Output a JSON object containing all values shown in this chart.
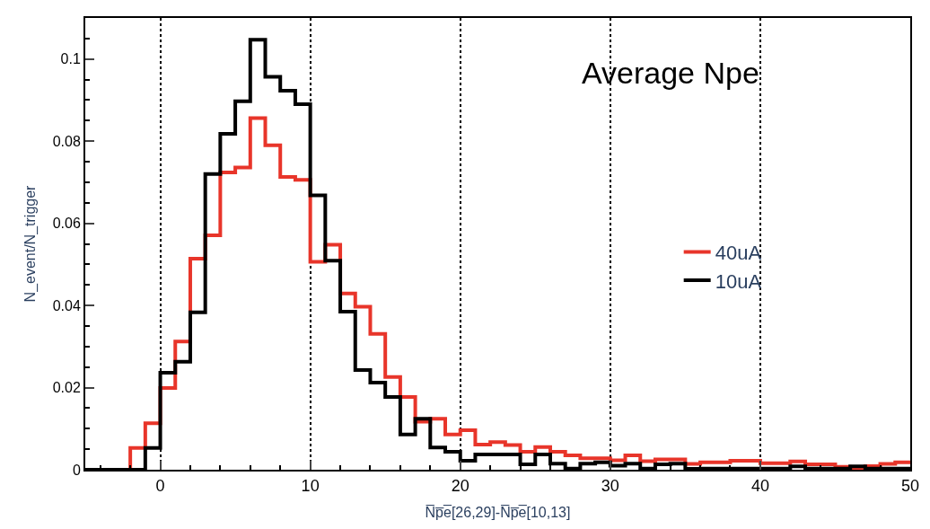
{
  "chart_data": {
    "type": "histogram",
    "xlabel": "N̅p̅e̅[26,29]-N̅p̅e̅[10,13]",
    "ylabel": "N_event/N_trigger",
    "annotations": [
      "Average Npe"
    ],
    "bins": [
      -5,
      -4,
      -3,
      -2,
      -1,
      0,
      1,
      2,
      3,
      4,
      5,
      6,
      7,
      8,
      9,
      10,
      11,
      12,
      13,
      14,
      15,
      16,
      17,
      18,
      19,
      20,
      21,
      22,
      23,
      24,
      25,
      26,
      27,
      28,
      29,
      30,
      31,
      32,
      33,
      34,
      35,
      36,
      37,
      38,
      39,
      40,
      41,
      42,
      43,
      44,
      45,
      46,
      47,
      48,
      49,
      50
    ],
    "series": [
      {
        "name": "40uA",
        "color": "#e8352a",
        "values": [
          0,
          0,
          0,
          0.0053,
          0.0113,
          0.0199,
          0.0312,
          0.0514,
          0.0571,
          0.0724,
          0.0736,
          0.0856,
          0.079,
          0.0713,
          0.0706,
          0.0506,
          0.0548,
          0.0429,
          0.0397,
          0.0331,
          0.0226,
          0.0177,
          0.0117,
          0.0124,
          0.0086,
          0.0096,
          0.0061,
          0.0067,
          0.006,
          0.0044,
          0.0055,
          0.0044,
          0.0035,
          0.0028,
          0.0028,
          0.0023,
          0.0035,
          0.0021,
          0.0025,
          0.0025,
          0.0014,
          0.0018,
          0.0018,
          0.0022,
          0.0022,
          0.0016,
          0.0016,
          0.002,
          0.0013,
          0.0013,
          0.0007,
          0.0002,
          0.0009,
          0.0014,
          0.0018
        ]
      },
      {
        "name": "10uA",
        "color": "#000000",
        "values": [
          0,
          0,
          0,
          0,
          0.0053,
          0.0236,
          0.0263,
          0.0383,
          0.072,
          0.0818,
          0.0897,
          0.1047,
          0.0957,
          0.0923,
          0.089,
          0.0668,
          0.0509,
          0.0385,
          0.0243,
          0.0212,
          0.0177,
          0.0086,
          0.0124,
          0.0054,
          0.0044,
          0.0022,
          0.0037,
          0.0037,
          0.0037,
          0.0013,
          0.0037,
          0.0015,
          0.0003,
          0.0015,
          0.0018,
          0.001,
          0.0015,
          0.0003,
          0.0013,
          0.0015,
          0.0002,
          0.0003,
          0.0003,
          0.0003,
          0.0003,
          0.0003,
          0.0003,
          0.0008,
          0.0003,
          0.0003,
          0.0003,
          0.0008,
          0.0003,
          0.0003,
          0.0003
        ]
      }
    ],
    "xlim": [
      -5,
      50
    ],
    "xticks": [
      0,
      10,
      20,
      30,
      40,
      50
    ],
    "ylim": [
      0,
      0.11
    ],
    "yticks": [
      0,
      0.02,
      0.04,
      0.06,
      0.08,
      0.1
    ],
    "grid": "x",
    "legend": "right",
    "line_style": "solid",
    "marker": "none"
  }
}
